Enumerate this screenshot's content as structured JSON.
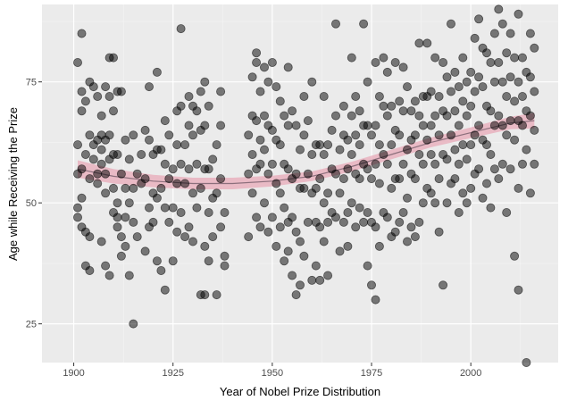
{
  "chart_data": {
    "type": "scatter",
    "title": "",
    "xlabel": "Year of Nobel Prize Distribution",
    "ylabel": "Age while Receiving the Prize",
    "xlim": [
      1892,
      2022
    ],
    "ylim": [
      17,
      91
    ],
    "x_ticks": [
      1900,
      1925,
      1950,
      1975,
      2000
    ],
    "y_ticks": [
      25,
      50,
      75
    ],
    "grid": true,
    "legend": "none",
    "point_color": "#000000",
    "point_opacity": 0.5,
    "smooth_line_color": "#8c6f7c",
    "smooth_band_color": "#e8aab8",
    "smooth_trend": {
      "x": [
        1901,
        1910,
        1920,
        1930,
        1940,
        1950,
        1960,
        1970,
        1980,
        1990,
        2000,
        2010,
        2016
      ],
      "y": [
        57,
        55.5,
        54.5,
        54,
        54,
        54.5,
        55.5,
        57.5,
        60,
        62.5,
        64.5,
        66.5,
        67
      ],
      "band_halfwidth": [
        1.8,
        1.5,
        1.3,
        1.2,
        1.2,
        1.1,
        1.0,
        1.0,
        1.0,
        1.0,
        1.1,
        1.3,
        1.6
      ]
    },
    "points": [
      [
        1901,
        79
      ],
      [
        1901,
        62
      ],
      [
        1901,
        56
      ],
      [
        1901,
        49
      ],
      [
        1901,
        47
      ],
      [
        1902,
        73
      ],
      [
        1902,
        85
      ],
      [
        1902,
        69
      ],
      [
        1902,
        57
      ],
      [
        1902,
        51
      ],
      [
        1902,
        45
      ],
      [
        1903,
        71
      ],
      [
        1903,
        60
      ],
      [
        1903,
        44
      ],
      [
        1903,
        37
      ],
      [
        1904,
        75
      ],
      [
        1904,
        64
      ],
      [
        1904,
        55
      ],
      [
        1904,
        36
      ],
      [
        1904,
        43
      ],
      [
        1905,
        74
      ],
      [
        1905,
        62
      ],
      [
        1905,
        59
      ],
      [
        1906,
        72
      ],
      [
        1906,
        63
      ],
      [
        1906,
        56
      ],
      [
        1906,
        54
      ],
      [
        1907,
        68
      ],
      [
        1907,
        61
      ],
      [
        1907,
        58
      ],
      [
        1907,
        64
      ],
      [
        1907,
        42
      ],
      [
        1908,
        74
      ],
      [
        1908,
        63
      ],
      [
        1908,
        56
      ],
      [
        1908,
        52
      ],
      [
        1908,
        37
      ],
      [
        1909,
        80
      ],
      [
        1909,
        72
      ],
      [
        1909,
        64
      ],
      [
        1909,
        59
      ],
      [
        1909,
        35
      ],
      [
        1910,
        80
      ],
      [
        1910,
        69
      ],
      [
        1910,
        60
      ],
      [
        1910,
        53
      ],
      [
        1910,
        48
      ],
      [
        1911,
        73
      ],
      [
        1911,
        60
      ],
      [
        1911,
        50
      ],
      [
        1911,
        45
      ],
      [
        1911,
        47
      ],
      [
        1912,
        73
      ],
      [
        1912,
        56
      ],
      [
        1912,
        43
      ],
      [
        1912,
        39
      ],
      [
        1913,
        63
      ],
      [
        1913,
        53
      ],
      [
        1913,
        47
      ],
      [
        1913,
        41
      ],
      [
        1914,
        59
      ],
      [
        1914,
        50
      ],
      [
        1914,
        35
      ],
      [
        1915,
        64
      ],
      [
        1915,
        53
      ],
      [
        1915,
        25
      ],
      [
        1915,
        46
      ],
      [
        1916,
        56
      ],
      [
        1916,
        43
      ],
      [
        1917,
        60
      ],
      [
        1917,
        54
      ],
      [
        1918,
        65
      ],
      [
        1918,
        55
      ],
      [
        1918,
        40
      ],
      [
        1919,
        74
      ],
      [
        1919,
        63
      ],
      [
        1919,
        49
      ],
      [
        1919,
        45
      ],
      [
        1920,
        60
      ],
      [
        1920,
        52
      ],
      [
        1920,
        46
      ],
      [
        1921,
        77
      ],
      [
        1921,
        61
      ],
      [
        1921,
        51
      ],
      [
        1921,
        38
      ],
      [
        1922,
        61
      ],
      [
        1922,
        53
      ],
      [
        1922,
        36
      ],
      [
        1923,
        58
      ],
      [
        1923,
        49
      ],
      [
        1923,
        32
      ],
      [
        1923,
        67
      ],
      [
        1924,
        64
      ],
      [
        1924,
        55
      ],
      [
        1924,
        46
      ],
      [
        1925,
        57
      ],
      [
        1925,
        49
      ],
      [
        1925,
        38
      ],
      [
        1926,
        69
      ],
      [
        1926,
        62
      ],
      [
        1926,
        54
      ],
      [
        1926,
        44
      ],
      [
        1927,
        86
      ],
      [
        1927,
        70
      ],
      [
        1927,
        58
      ],
      [
        1927,
        48
      ],
      [
        1928,
        62
      ],
      [
        1928,
        54
      ],
      [
        1928,
        43
      ],
      [
        1929,
        72
      ],
      [
        1929,
        66
      ],
      [
        1929,
        57
      ],
      [
        1929,
        45
      ],
      [
        1930,
        70
      ],
      [
        1930,
        64
      ],
      [
        1930,
        52
      ],
      [
        1930,
        42
      ],
      [
        1931,
        69
      ],
      [
        1931,
        58
      ],
      [
        1931,
        49
      ],
      [
        1932,
        73
      ],
      [
        1932,
        65
      ],
      [
        1932,
        53
      ],
      [
        1932,
        31
      ],
      [
        1933,
        75
      ],
      [
        1933,
        66
      ],
      [
        1933,
        57
      ],
      [
        1933,
        31
      ],
      [
        1933,
        41
      ],
      [
        1934,
        70
      ],
      [
        1934,
        57
      ],
      [
        1934,
        48
      ],
      [
        1934,
        38
      ],
      [
        1935,
        59
      ],
      [
        1935,
        51
      ],
      [
        1935,
        43
      ],
      [
        1936,
        62
      ],
      [
        1936,
        52
      ],
      [
        1936,
        31
      ],
      [
        1937,
        73
      ],
      [
        1937,
        66
      ],
      [
        1937,
        55
      ],
      [
        1937,
        45
      ],
      [
        1938,
        48
      ],
      [
        1938,
        37
      ],
      [
        1938,
        39
      ],
      [
        1944,
        64
      ],
      [
        1944,
        56
      ],
      [
        1944,
        43
      ],
      [
        1945,
        76
      ],
      [
        1945,
        68
      ],
      [
        1945,
        60
      ],
      [
        1945,
        52
      ],
      [
        1946,
        81
      ],
      [
        1946,
        79
      ],
      [
        1946,
        67
      ],
      [
        1946,
        57
      ],
      [
        1946,
        47
      ],
      [
        1947,
        73
      ],
      [
        1947,
        63
      ],
      [
        1947,
        58
      ],
      [
        1947,
        45
      ],
      [
        1948,
        78
      ],
      [
        1948,
        68
      ],
      [
        1948,
        61
      ],
      [
        1948,
        50
      ],
      [
        1949,
        75
      ],
      [
        1949,
        66
      ],
      [
        1949,
        56
      ],
      [
        1949,
        44
      ],
      [
        1950,
        79
      ],
      [
        1950,
        65
      ],
      [
        1950,
        58
      ],
      [
        1950,
        47
      ],
      [
        1951,
        74
      ],
      [
        1951,
        63
      ],
      [
        1951,
        54
      ],
      [
        1951,
        41
      ],
      [
        1952,
        71
      ],
      [
        1952,
        62
      ],
      [
        1952,
        52
      ],
      [
        1952,
        45
      ],
      [
        1953,
        68
      ],
      [
        1953,
        58
      ],
      [
        1953,
        49
      ],
      [
        1953,
        38
      ],
      [
        1954,
        78
      ],
      [
        1954,
        66
      ],
      [
        1954,
        57
      ],
      [
        1954,
        46
      ],
      [
        1954,
        40
      ],
      [
        1955,
        69
      ],
      [
        1955,
        55
      ],
      [
        1955,
        47
      ],
      [
        1955,
        35
      ],
      [
        1956,
        66
      ],
      [
        1956,
        56
      ],
      [
        1956,
        44
      ],
      [
        1956,
        31
      ],
      [
        1957,
        61
      ],
      [
        1957,
        53
      ],
      [
        1957,
        42
      ],
      [
        1957,
        33
      ],
      [
        1958,
        72
      ],
      [
        1958,
        64
      ],
      [
        1958,
        53
      ],
      [
        1958,
        39
      ],
      [
        1959,
        67
      ],
      [
        1959,
        56
      ],
      [
        1959,
        46
      ],
      [
        1960,
        75
      ],
      [
        1960,
        60
      ],
      [
        1960,
        52
      ],
      [
        1960,
        34
      ],
      [
        1961,
        62
      ],
      [
        1961,
        53
      ],
      [
        1961,
        46
      ],
      [
        1961,
        37
      ],
      [
        1962,
        62
      ],
      [
        1962,
        55
      ],
      [
        1962,
        45
      ],
      [
        1962,
        34
      ],
      [
        1963,
        72
      ],
      [
        1963,
        60
      ],
      [
        1963,
        50
      ],
      [
        1963,
        42
      ],
      [
        1964,
        62
      ],
      [
        1964,
        52
      ],
      [
        1964,
        46
      ],
      [
        1964,
        35
      ],
      [
        1965,
        65
      ],
      [
        1965,
        57
      ],
      [
        1965,
        48
      ],
      [
        1966,
        87
      ],
      [
        1966,
        68
      ],
      [
        1966,
        56
      ],
      [
        1966,
        47
      ],
      [
        1967,
        61
      ],
      [
        1967,
        52
      ],
      [
        1967,
        40
      ],
      [
        1968,
        70
      ],
      [
        1968,
        64
      ],
      [
        1968,
        55
      ],
      [
        1968,
        46
      ],
      [
        1969,
        63
      ],
      [
        1969,
        57
      ],
      [
        1969,
        48
      ],
      [
        1969,
        41
      ],
      [
        1970,
        80
      ],
      [
        1970,
        68
      ],
      [
        1970,
        60
      ],
      [
        1970,
        50
      ],
      [
        1971,
        72
      ],
      [
        1971,
        64
      ],
      [
        1971,
        56
      ],
      [
        1971,
        45
      ],
      [
        1972,
        69
      ],
      [
        1972,
        62
      ],
      [
        1972,
        55
      ],
      [
        1972,
        49
      ],
      [
        1973,
        87
      ],
      [
        1973,
        66
      ],
      [
        1973,
        58
      ],
      [
        1973,
        46
      ],
      [
        1974,
        75
      ],
      [
        1974,
        66
      ],
      [
        1974,
        57
      ],
      [
        1974,
        48
      ],
      [
        1974,
        37
      ],
      [
        1975,
        64
      ],
      [
        1975,
        55
      ],
      [
        1975,
        46
      ],
      [
        1975,
        33
      ],
      [
        1976,
        79
      ],
      [
        1976,
        66
      ],
      [
        1976,
        58
      ],
      [
        1976,
        45
      ],
      [
        1976,
        30
      ],
      [
        1977,
        72
      ],
      [
        1977,
        62
      ],
      [
        1977,
        54
      ],
      [
        1977,
        41
      ],
      [
        1978,
        80
      ],
      [
        1978,
        70
      ],
      [
        1978,
        60
      ],
      [
        1978,
        48
      ],
      [
        1979,
        77
      ],
      [
        1979,
        68
      ],
      [
        1979,
        58
      ],
      [
        1979,
        47
      ],
      [
        1980,
        70
      ],
      [
        1980,
        62
      ],
      [
        1980,
        53
      ],
      [
        1980,
        43
      ],
      [
        1981,
        79
      ],
      [
        1981,
        65
      ],
      [
        1981,
        55
      ],
      [
        1981,
        44
      ],
      [
        1982,
        71
      ],
      [
        1982,
        64
      ],
      [
        1982,
        55
      ],
      [
        1982,
        46
      ],
      [
        1983,
        78
      ],
      [
        1983,
        69
      ],
      [
        1983,
        58
      ],
      [
        1983,
        48
      ],
      [
        1984,
        74
      ],
      [
        1984,
        61
      ],
      [
        1984,
        51
      ],
      [
        1984,
        42
      ],
      [
        1985,
        69
      ],
      [
        1985,
        63
      ],
      [
        1985,
        56
      ],
      [
        1985,
        45
      ],
      [
        1986,
        71
      ],
      [
        1986,
        64
      ],
      [
        1986,
        55
      ],
      [
        1986,
        43
      ],
      [
        1987,
        83
      ],
      [
        1987,
        68
      ],
      [
        1987,
        60
      ],
      [
        1987,
        46
      ],
      [
        1988,
        72
      ],
      [
        1988,
        66
      ],
      [
        1988,
        58
      ],
      [
        1988,
        50
      ],
      [
        1989,
        83
      ],
      [
        1989,
        72
      ],
      [
        1989,
        63
      ],
      [
        1989,
        53
      ],
      [
        1990,
        73
      ],
      [
        1990,
        66
      ],
      [
        1990,
        60
      ],
      [
        1990,
        52
      ],
      [
        1991,
        80
      ],
      [
        1991,
        68
      ],
      [
        1991,
        58
      ],
      [
        1991,
        50
      ],
      [
        1992,
        72
      ],
      [
        1992,
        64
      ],
      [
        1992,
        55
      ],
      [
        1992,
        44
      ],
      [
        1993,
        79
      ],
      [
        1993,
        69
      ],
      [
        1993,
        60
      ],
      [
        1993,
        33
      ],
      [
        1994,
        76
      ],
      [
        1994,
        68
      ],
      [
        1994,
        59
      ],
      [
        1994,
        50
      ],
      [
        1995,
        87
      ],
      [
        1995,
        73
      ],
      [
        1995,
        64
      ],
      [
        1995,
        54
      ],
      [
        1996,
        77
      ],
      [
        1996,
        69
      ],
      [
        1996,
        61
      ],
      [
        1996,
        55
      ],
      [
        1997,
        74
      ],
      [
        1997,
        66
      ],
      [
        1997,
        58
      ],
      [
        1997,
        48
      ],
      [
        1998,
        80
      ],
      [
        1998,
        71
      ],
      [
        1998,
        62
      ],
      [
        1998,
        52
      ],
      [
        1999,
        75
      ],
      [
        1999,
        68
      ],
      [
        1999,
        59
      ],
      [
        1999,
        50
      ],
      [
        2000,
        77
      ],
      [
        2000,
        70
      ],
      [
        2000,
        62
      ],
      [
        2000,
        53
      ],
      [
        2001,
        84
      ],
      [
        2001,
        73
      ],
      [
        2001,
        64
      ],
      [
        2001,
        56
      ],
      [
        2002,
        88
      ],
      [
        2002,
        76
      ],
      [
        2002,
        66
      ],
      [
        2002,
        57
      ],
      [
        2003,
        82
      ],
      [
        2003,
        74
      ],
      [
        2003,
        63
      ],
      [
        2003,
        51
      ],
      [
        2004,
        81
      ],
      [
        2004,
        70
      ],
      [
        2004,
        62
      ],
      [
        2004,
        54
      ],
      [
        2005,
        79
      ],
      [
        2005,
        69
      ],
      [
        2005,
        60
      ],
      [
        2005,
        49
      ],
      [
        2006,
        85
      ],
      [
        2006,
        75
      ],
      [
        2006,
        66
      ],
      [
        2006,
        57
      ],
      [
        2007,
        90
      ],
      [
        2007,
        79
      ],
      [
        2007,
        68
      ],
      [
        2007,
        55
      ],
      [
        2008,
        87
      ],
      [
        2008,
        75
      ],
      [
        2008,
        66
      ],
      [
        2008,
        58
      ],
      [
        2009,
        81
      ],
      [
        2009,
        72
      ],
      [
        2009,
        64
      ],
      [
        2009,
        48
      ],
      [
        2010,
        85
      ],
      [
        2010,
        76
      ],
      [
        2010,
        67
      ],
      [
        2010,
        57
      ],
      [
        2011,
        80
      ],
      [
        2011,
        71
      ],
      [
        2011,
        63
      ],
      [
        2011,
        39
      ],
      [
        2012,
        89
      ],
      [
        2012,
        75
      ],
      [
        2012,
        67
      ],
      [
        2012,
        53
      ],
      [
        2012,
        32
      ],
      [
        2013,
        80
      ],
      [
        2013,
        72
      ],
      [
        2013,
        66
      ],
      [
        2013,
        58
      ],
      [
        2014,
        77
      ],
      [
        2014,
        69
      ],
      [
        2014,
        61
      ],
      [
        2014,
        17
      ],
      [
        2015,
        85
      ],
      [
        2015,
        76
      ],
      [
        2015,
        68
      ],
      [
        2015,
        52
      ],
      [
        2016,
        82
      ],
      [
        2016,
        73
      ],
      [
        2016,
        65
      ],
      [
        2016,
        58
      ]
    ]
  }
}
